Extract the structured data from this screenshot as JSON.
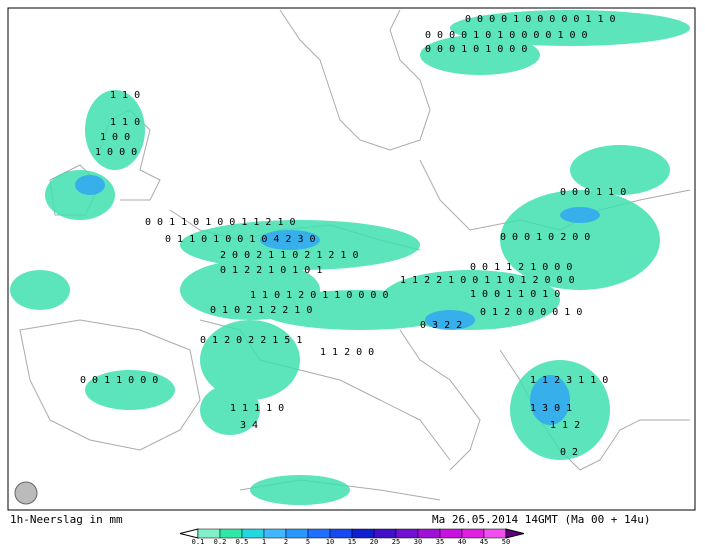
{
  "caption": "1h-Neerslag in mm",
  "valid_time": "Ma 26.05.2014 14GMT (Ma 00 + 14u)",
  "legend": {
    "values": [
      0.1,
      0.2,
      0.5,
      1,
      2,
      5,
      10,
      15,
      20,
      25,
      30,
      35,
      40,
      45,
      50
    ],
    "colors": [
      "#80f0c8",
      "#30e8a8",
      "#20d8e0",
      "#40b8ff",
      "#2898ff",
      "#2070ff",
      "#1848f0",
      "#1020d0",
      "#4010c8",
      "#7010d0",
      "#a010d8",
      "#c810e0",
      "#e020e0",
      "#f050f0"
    ],
    "over_color": "#600080"
  },
  "map_values": [
    "0 0 0 0 1 0 0 0 0 0 1 1 0",
    "0 0 0 0 1 0 1 0 0 0 0 1 0 0",
    "0 0 0 1 0 1 0 0 0",
    "1 1 0",
    "1 1 0",
    "1 0 0",
    "1 0 0 0",
    "0 0 1 1 0 1 0 0 1 1 2 1 0",
    "0 1 1 0 1 0 0 1 0 4 2 3 0",
    "2 0 0 2 1 1 0 2 1 2 1 0",
    "0 1 2 2 1 0 1 0 1",
    "1 1 2 2 1 0 0 1 1 0 1 2 0 0 0",
    "1 1 0 1 2 0 1 1 0 0 0 0",
    "0 1 0 2 1 2 2 1 0",
    "0 1 2 0 2 2 1 5 1",
    "1 1 2 0 0",
    "1 1 1 1 0",
    "3 4",
    "0 0 1 1 0 0 0",
    "1 1 2 3 1 1 0",
    "1 3 0 1",
    "1 1 2",
    "0 2",
    "0 0 1 1 2 1 0 0 0",
    "1 0 0 1 1 0 1 0",
    "0 1 2 0 0 0 0 1 0",
    "0 3 2 2",
    "0 0 0 1 0 2 0 0",
    "0 0 0 1 1 0"
  ]
}
